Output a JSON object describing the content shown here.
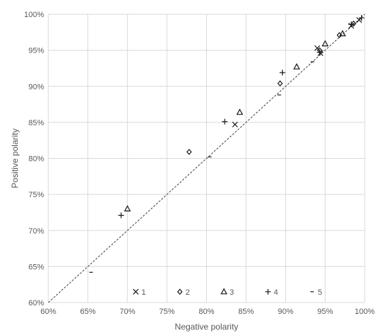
{
  "chart_data": {
    "type": "scatter",
    "xlabel": "Negative polarity",
    "ylabel": "Positive polarity",
    "xlim": [
      60,
      100
    ],
    "ylim": [
      60,
      100
    ],
    "x_ticks": [
      "60%",
      "65%",
      "70%",
      "75%",
      "80%",
      "85%",
      "90%",
      "95%",
      "100%"
    ],
    "y_ticks": [
      "60%",
      "65%",
      "70%",
      "75%",
      "80%",
      "85%",
      "90%",
      "95%",
      "100%"
    ],
    "grid": true,
    "reference_line": "y = x (dashed)",
    "legend_position": "bottom-inside",
    "series": [
      {
        "name": "1",
        "marker": "x",
        "points": [
          [
            83.6,
            84.7
          ],
          [
            94.0,
            95.3
          ],
          [
            94.4,
            94.6
          ],
          [
            98.3,
            98.4
          ],
          [
            99.3,
            99.2
          ]
        ]
      },
      {
        "name": "2",
        "marker": "diamond",
        "points": [
          [
            77.8,
            80.9
          ],
          [
            89.3,
            90.4
          ],
          [
            94.3,
            95.0
          ],
          [
            96.8,
            97.1
          ],
          [
            98.6,
            98.7
          ]
        ]
      },
      {
        "name": "3",
        "marker": "triangle",
        "points": [
          [
            70.0,
            73.0
          ],
          [
            84.2,
            86.4
          ],
          [
            91.4,
            92.7
          ],
          [
            95.0,
            95.9
          ],
          [
            97.2,
            97.3
          ]
        ]
      },
      {
        "name": "4",
        "marker": "plus",
        "points": [
          [
            69.2,
            72.1
          ],
          [
            82.3,
            85.1
          ],
          [
            89.6,
            91.9
          ],
          [
            94.3,
            94.7
          ],
          [
            98.3,
            98.6
          ],
          [
            99.6,
            99.5
          ]
        ]
      },
      {
        "name": "5",
        "marker": "dash",
        "points": [
          [
            65.4,
            64.2
          ],
          [
            80.4,
            80.2
          ],
          [
            89.2,
            88.8
          ],
          [
            93.4,
            93.4
          ]
        ]
      }
    ]
  }
}
